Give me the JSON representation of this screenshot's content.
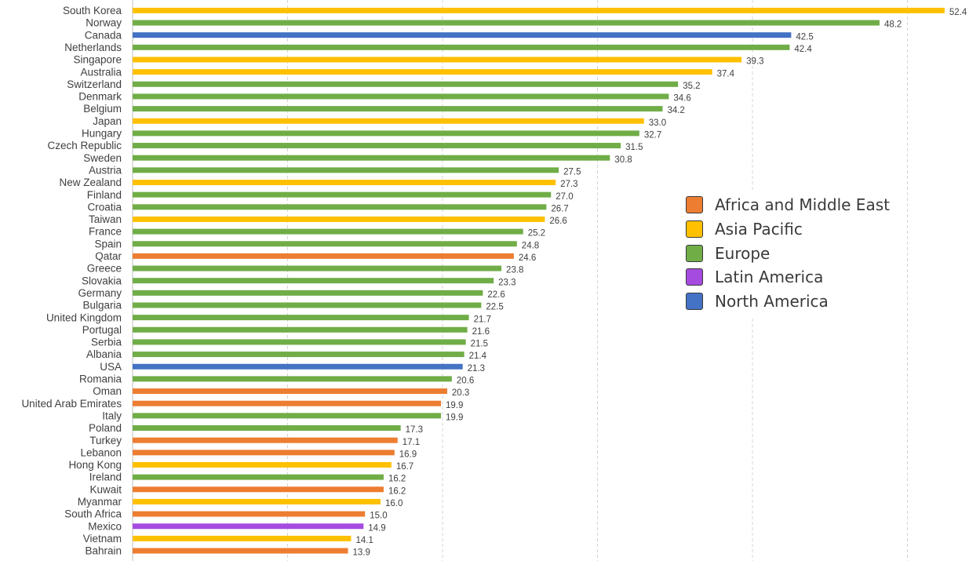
{
  "chart_data": {
    "type": "bar",
    "orientation": "horizontal",
    "x_max": 52.4,
    "grid": "vertical dashed",
    "legend_position": "right",
    "legend": [
      {
        "name": "Africa and Middle East",
        "color": "#ED7D31"
      },
      {
        "name": "Asia Pacific",
        "color": "#FFC000"
      },
      {
        "name": "Europe",
        "color": "#70AD47"
      },
      {
        "name": "Latin America",
        "color": "#A64BE0"
      },
      {
        "name": "North America",
        "color": "#4472C4"
      }
    ],
    "bars": [
      {
        "category": "South Korea",
        "value": 52.4,
        "label": "52.4",
        "region": "Asia Pacific"
      },
      {
        "category": "Norway",
        "value": 48.2,
        "label": "48.2",
        "region": "Europe"
      },
      {
        "category": "Canada",
        "value": 42.5,
        "label": "42.5",
        "region": "North America"
      },
      {
        "category": "Netherlands",
        "value": 42.4,
        "label": "42.4",
        "region": "Europe"
      },
      {
        "category": "Singapore",
        "value": 39.3,
        "label": "39.3",
        "region": "Asia Pacific"
      },
      {
        "category": "Australia",
        "value": 37.4,
        "label": "37.4",
        "region": "Asia Pacific"
      },
      {
        "category": "Switzerland",
        "value": 35.2,
        "label": "35.2",
        "region": "Europe"
      },
      {
        "category": "Denmark",
        "value": 34.6,
        "label": "34.6",
        "region": "Europe"
      },
      {
        "category": "Belgium",
        "value": 34.2,
        "label": "34.2",
        "region": "Europe"
      },
      {
        "category": "Japan",
        "value": 33.0,
        "label": "33.0",
        "region": "Asia Pacific"
      },
      {
        "category": "Hungary",
        "value": 32.7,
        "label": "32.7",
        "region": "Europe"
      },
      {
        "category": "Czech Republic",
        "value": 31.5,
        "label": "31.5",
        "region": "Europe"
      },
      {
        "category": "Sweden",
        "value": 30.8,
        "label": "30.8",
        "region": "Europe"
      },
      {
        "category": "Austria",
        "value": 27.5,
        "label": "27.5",
        "region": "Europe"
      },
      {
        "category": "New Zealand",
        "value": 27.3,
        "label": "27.3",
        "region": "Asia Pacific"
      },
      {
        "category": "Finland",
        "value": 27.0,
        "label": "27.0",
        "region": "Europe"
      },
      {
        "category": "Croatia",
        "value": 26.7,
        "label": "26.7",
        "region": "Europe"
      },
      {
        "category": "Taiwan",
        "value": 26.6,
        "label": "26.6",
        "region": "Asia Pacific"
      },
      {
        "category": "France",
        "value": 25.2,
        "label": "25.2",
        "region": "Europe"
      },
      {
        "category": "Spain",
        "value": 24.8,
        "label": "24.8",
        "region": "Europe"
      },
      {
        "category": "Qatar",
        "value": 24.6,
        "label": "24.6",
        "region": "Africa and Middle East"
      },
      {
        "category": "Greece",
        "value": 23.8,
        "label": "23.8",
        "region": "Europe"
      },
      {
        "category": "Slovakia",
        "value": 23.3,
        "label": "23.3",
        "region": "Europe"
      },
      {
        "category": "Germany",
        "value": 22.6,
        "label": "22.6",
        "region": "Europe"
      },
      {
        "category": "Bulgaria",
        "value": 22.5,
        "label": "22.5",
        "region": "Europe"
      },
      {
        "category": "United Kingdom",
        "value": 21.7,
        "label": "21.7",
        "region": "Europe"
      },
      {
        "category": "Portugal",
        "value": 21.6,
        "label": "21.6",
        "region": "Europe"
      },
      {
        "category": "Serbia",
        "value": 21.5,
        "label": "21.5",
        "region": "Europe"
      },
      {
        "category": "Albania",
        "value": 21.4,
        "label": "21.4",
        "region": "Europe"
      },
      {
        "category": "USA",
        "value": 21.3,
        "label": "21.3",
        "region": "North America"
      },
      {
        "category": "Romania",
        "value": 20.6,
        "label": "20.6",
        "region": "Europe"
      },
      {
        "category": "Oman",
        "value": 20.3,
        "label": "20.3",
        "region": "Africa and Middle East"
      },
      {
        "category": "United Arab Emirates",
        "value": 19.9,
        "label": "19.9",
        "region": "Africa and Middle East"
      },
      {
        "category": "Italy",
        "value": 19.9,
        "label": "19.9",
        "region": "Europe"
      },
      {
        "category": "Poland",
        "value": 17.3,
        "label": "17.3",
        "region": "Europe"
      },
      {
        "category": "Turkey",
        "value": 17.1,
        "label": "17.1",
        "region": "Africa and Middle East"
      },
      {
        "category": "Lebanon",
        "value": 16.9,
        "label": "16.9",
        "region": "Africa and Middle East"
      },
      {
        "category": "Hong Kong",
        "value": 16.7,
        "label": "16.7",
        "region": "Asia Pacific"
      },
      {
        "category": "Ireland",
        "value": 16.2,
        "label": "16.2",
        "region": "Europe"
      },
      {
        "category": "Kuwait",
        "value": 16.2,
        "label": "16.2",
        "region": "Africa and Middle East"
      },
      {
        "category": "Myanmar",
        "value": 16.0,
        "label": "16.0",
        "region": "Asia Pacific"
      },
      {
        "category": "South Africa",
        "value": 15.0,
        "label": "15.0",
        "region": "Africa and Middle East"
      },
      {
        "category": "Mexico",
        "value": 14.9,
        "label": "14.9",
        "region": "Latin America"
      },
      {
        "category": "Vietnam",
        "value": 14.1,
        "label": "14.1",
        "region": "Asia Pacific"
      },
      {
        "category": "Bahrain",
        "value": 13.9,
        "label": "13.9",
        "region": "Africa and Middle East"
      }
    ]
  }
}
